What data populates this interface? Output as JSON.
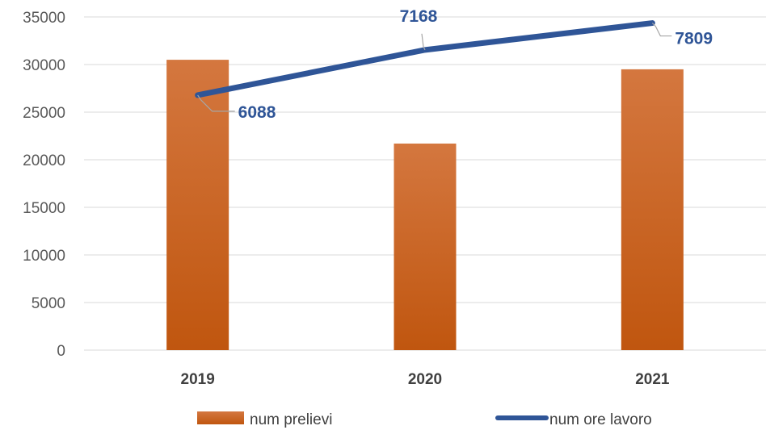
{
  "chart_data": {
    "type": "bar",
    "categories": [
      "2019",
      "2020",
      "2021"
    ],
    "series": [
      {
        "name": "num prelievi",
        "kind": "bar",
        "values": [
          30500,
          21700,
          29500
        ],
        "color": "#c55a11"
      },
      {
        "name": "num ore lavoro",
        "kind": "line",
        "values": [
          6088,
          7168,
          7809
        ],
        "data_labels": [
          "6088",
          "7168",
          "7809"
        ],
        "color": "#2f5597"
      }
    ],
    "ylim": [
      0,
      35000
    ],
    "yticks": [
      "0",
      "5000",
      "10000",
      "15000",
      "20000",
      "25000",
      "30000",
      "35000"
    ],
    "title": "",
    "xlabel": "",
    "ylabel": "",
    "grid": true,
    "legend": "bottom"
  }
}
